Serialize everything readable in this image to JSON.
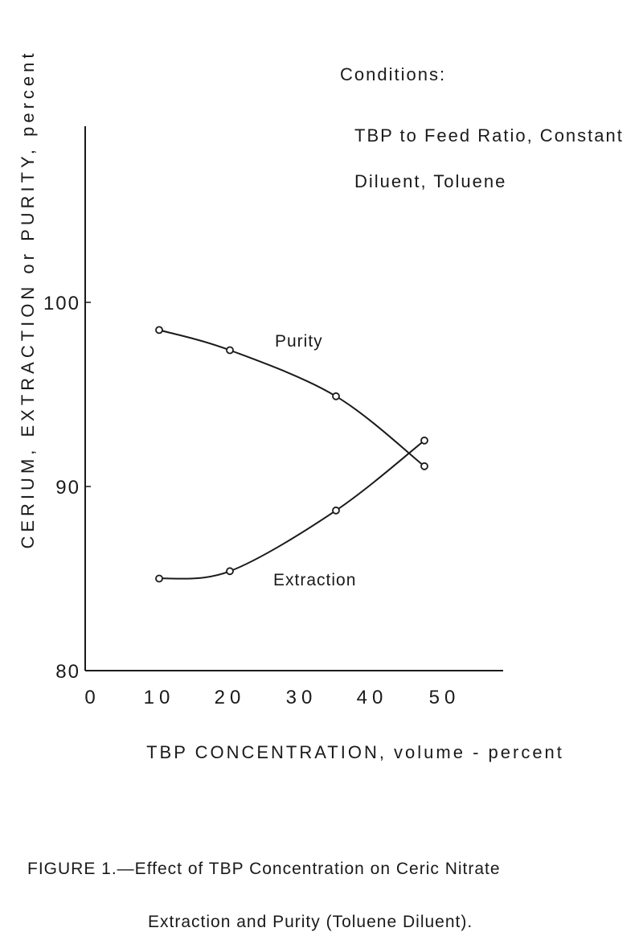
{
  "chart_data": {
    "type": "line",
    "xlabel": "TBP CONCENTRATION, volume - percent",
    "ylabel": "CERIUM, EXTRACTION or PURITY, percent",
    "xlim": [
      0,
      58
    ],
    "ylim": [
      80,
      110
    ],
    "x_ticks": [
      "0",
      "10",
      "20",
      "30",
      "40",
      "50"
    ],
    "y_ticks": [
      "80",
      "90",
      "100"
    ],
    "grid": false,
    "conditions": {
      "heading": "Conditions:",
      "lines": [
        "TBP to Feed Ratio, Constant",
        "Diluent, Toluene"
      ]
    },
    "series": [
      {
        "name": "Purity",
        "x": [
          10,
          20,
          35,
          47.5
        ],
        "y": [
          98.5,
          97.4,
          94.9,
          91.1
        ]
      },
      {
        "name": "Extraction",
        "x": [
          10,
          20,
          35,
          47.5
        ],
        "y": [
          85.0,
          85.4,
          88.7,
          92.5
        ]
      }
    ],
    "caption": [
      "FIGURE 1.—Effect of TBP Concentration on Ceric Nitrate",
      "Extraction and Purity (Toluene Diluent)."
    ]
  }
}
